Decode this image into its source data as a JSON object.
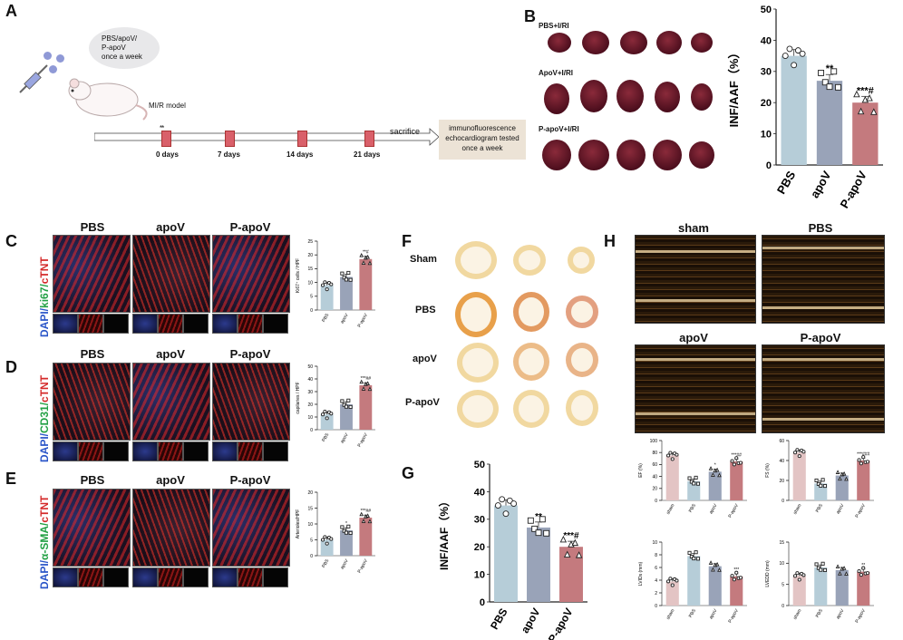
{
  "panels": {
    "A": "A",
    "B": "B",
    "C": "C",
    "D": "D",
    "E": "E",
    "F": "F",
    "G": "G",
    "H": "H"
  },
  "panelA": {
    "bubble": [
      "PBS/apoV/",
      "P-apoV",
      "once a week"
    ],
    "model": "MI/R model",
    "days": [
      "0 days",
      "7 days",
      "14 days",
      "21 days"
    ],
    "sacrifice": "sacrifice",
    "box": [
      "immunofluorescence",
      "echocardiogram tested",
      "once a week"
    ]
  },
  "panelB": {
    "rows": [
      "PBS+I/RI",
      "ApoV+I/RI",
      "P-apoV+I/RI"
    ]
  },
  "groups": [
    "PBS",
    "apoV",
    "P-apoV"
  ],
  "stains": {
    "C": [
      "DAPI/",
      "ki67/",
      "cTNT"
    ],
    "D": [
      "DAPI/",
      "CD31/",
      "cTNT"
    ],
    "E": [
      "DAPI/",
      "α-SMA/",
      "cTNT"
    ]
  },
  "panelF": {
    "rows": [
      "Sham",
      "PBS",
      "apoV",
      "P-apoV"
    ]
  },
  "panelH": {
    "titles": [
      "sham",
      "PBS",
      "apoV",
      "P-apoV"
    ]
  },
  "colors": {
    "pbs": "#b6cdd8",
    "apov": "#99a3b8",
    "papov": "#c47a7e",
    "sham": "#e3c4c4"
  },
  "chart_data": [
    {
      "id": "B",
      "type": "bar",
      "categories": [
        "PBS",
        "apoV",
        "P-apoV"
      ],
      "values": [
        35,
        27,
        20
      ],
      "ylabel": "INF/AAF（%）",
      "ylim": [
        0,
        50
      ],
      "yticks": [
        0,
        10,
        20,
        30,
        40,
        50
      ],
      "annotations": [
        "",
        "**",
        "***#"
      ]
    },
    {
      "id": "G",
      "type": "bar",
      "categories": [
        "PBS",
        "apoV",
        "P-apoV"
      ],
      "values": [
        35,
        27,
        20
      ],
      "ylabel": "INF/AAF（%）",
      "ylim": [
        0,
        50
      ],
      "yticks": [
        0,
        10,
        20,
        30,
        40,
        50
      ],
      "annotations": [
        "",
        "**",
        "***#"
      ]
    },
    {
      "id": "C",
      "type": "bar",
      "categories": [
        "PBS",
        "apoV",
        "P-apoV"
      ],
      "values": [
        9,
        12,
        18.5
      ],
      "ylabel": "Ki67⁺ cells / HPF",
      "ylim": [
        0,
        25
      ],
      "yticks": [
        0,
        5,
        10,
        15,
        20,
        25
      ],
      "annotations": [
        "",
        "",
        "**#"
      ]
    },
    {
      "id": "D",
      "type": "bar",
      "categories": [
        "PBS",
        "apoV",
        "P-apoV"
      ],
      "values": [
        12,
        20,
        35
      ],
      "ylabel": "capilaries / HPF",
      "ylim": [
        0,
        50
      ],
      "yticks": [
        0,
        10,
        20,
        30,
        40,
        50
      ],
      "annotations": [
        "",
        "",
        "***##"
      ]
    },
    {
      "id": "E",
      "type": "bar",
      "categories": [
        "PBS",
        "apoV",
        "P-apoV"
      ],
      "values": [
        5,
        8,
        12
      ],
      "ylabel": "Arterioles/HPF",
      "ylim": [
        0,
        20
      ],
      "yticks": [
        0,
        5,
        10,
        15,
        20
      ],
      "annotations": [
        "",
        "*",
        "***##"
      ]
    },
    {
      "id": "EF",
      "type": "bar",
      "categories": [
        "sham",
        "PBS",
        "apoV",
        "P-apoV"
      ],
      "values": [
        75,
        32,
        48,
        65
      ],
      "ylabel": "EF (%)",
      "ylim": [
        0,
        100
      ],
      "yticks": [
        0,
        20,
        40,
        60,
        80,
        100
      ],
      "annotations": [
        "",
        "",
        "*",
        "***##"
      ]
    },
    {
      "id": "FS",
      "type": "bar",
      "categories": [
        "sham",
        "PBS",
        "apoV",
        "P-apoV"
      ],
      "values": [
        48,
        17,
        25,
        40
      ],
      "ylabel": "FS (%)",
      "ylim": [
        0,
        60
      ],
      "yticks": [
        0,
        20,
        40,
        60
      ],
      "annotations": [
        "",
        "",
        "",
        "***###"
      ]
    },
    {
      "id": "LVIDs",
      "type": "bar",
      "categories": [
        "sham",
        "PBS",
        "apoV",
        "P-apoV"
      ],
      "values": [
        3.8,
        7.8,
        6.2,
        4.6
      ],
      "ylabel": "LVIDs (mm)",
      "ylim": [
        0,
        10
      ],
      "yticks": [
        0,
        2,
        4,
        6,
        8,
        10
      ],
      "annotations": [
        "",
        "",
        "",
        "***"
      ]
    },
    {
      "id": "LVEDD",
      "type": "bar",
      "categories": [
        "sham",
        "PBS",
        "apoV",
        "P-apoV"
      ],
      "values": [
        7,
        9,
        8.4,
        8
      ],
      "ylabel": "LVEDD (mm)",
      "ylim": [
        0,
        15
      ],
      "yticks": [
        0,
        5,
        10,
        15
      ],
      "annotations": [
        "",
        "",
        "",
        "**"
      ]
    }
  ]
}
